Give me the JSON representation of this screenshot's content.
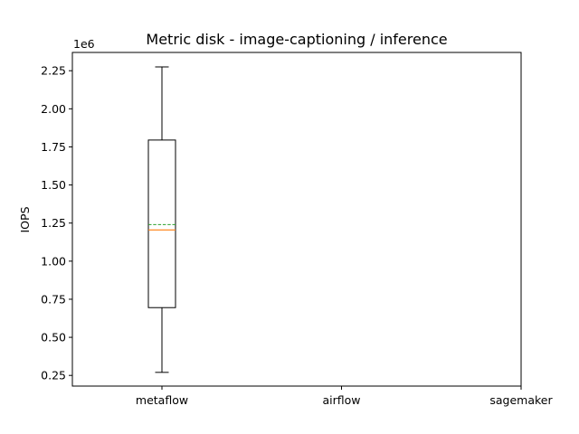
{
  "chart_data": {
    "type": "box",
    "title": "Metric disk - image-captioning / inference",
    "xlabel": "",
    "ylabel": "IOPS",
    "y_offset_label": "1e6",
    "y_scale_factor": 1000000,
    "ylim": [
      180000,
      2370000
    ],
    "yticks": [
      250000,
      500000,
      750000,
      1000000,
      1250000,
      1500000,
      1750000,
      2000000,
      2250000
    ],
    "ytick_labels": [
      "0.25",
      "0.50",
      "0.75",
      "1.00",
      "1.25",
      "1.50",
      "1.75",
      "2.00",
      "2.25"
    ],
    "categories": [
      "metaflow",
      "airflow",
      "sagemaker"
    ],
    "boxes": [
      {
        "category": "metaflow",
        "whisker_low": 270000,
        "q1": 695000,
        "median": 1205000,
        "mean": 1240000,
        "q3": 1795000,
        "whisker_high": 2275000
      }
    ],
    "colors": {
      "median": "#ff7f0e",
      "mean": "#2ca02c",
      "box": "#000000"
    },
    "grid": false
  }
}
